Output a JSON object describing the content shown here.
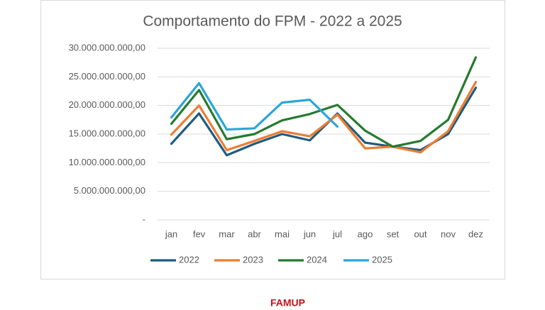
{
  "chart_data": {
    "type": "line",
    "title": "Comportamento do FPM - 2022 a 2025",
    "categories": [
      "jan",
      "fev",
      "mar",
      "abr",
      "mai",
      "jun",
      "jul",
      "ago",
      "set",
      "out",
      "nov",
      "dez"
    ],
    "series": [
      {
        "name": "2022",
        "color": "#1f5c7e",
        "values": [
          13300000000,
          18600000000,
          11300000000,
          13300000000,
          15000000000,
          13900000000,
          18600000000,
          13500000000,
          12800000000,
          12200000000,
          15000000000,
          23100000000
        ]
      },
      {
        "name": "2023",
        "color": "#ed7d31",
        "values": [
          14900000000,
          20000000000,
          12200000000,
          13800000000,
          15500000000,
          14600000000,
          18400000000,
          12500000000,
          12800000000,
          11800000000,
          15500000000,
          24100000000
        ]
      },
      {
        "name": "2024",
        "color": "#267a2f",
        "values": [
          16800000000,
          22700000000,
          14100000000,
          15000000000,
          17400000000,
          18500000000,
          20100000000,
          15600000000,
          12800000000,
          13800000000,
          17500000000,
          28400000000
        ]
      },
      {
        "name": "2025",
        "color": "#2aa6d8",
        "values": [
          17900000000,
          23900000000,
          15800000000,
          16000000000,
          20500000000,
          21000000000,
          16300000000,
          null,
          null,
          null,
          null,
          null
        ]
      }
    ],
    "ylim": [
      0,
      30000000000
    ],
    "yticks": [
      {
        "value": 0,
        "label": "-"
      },
      {
        "value": 5000000000,
        "label": "5.000.000.000,00"
      },
      {
        "value": 10000000000,
        "label": "10.000.000.000,00"
      },
      {
        "value": 15000000000,
        "label": "15.000.000.000,00"
      },
      {
        "value": 20000000000,
        "label": "20.000.000.000,00"
      },
      {
        "value": 25000000000,
        "label": "25.000.000.000,00"
      },
      {
        "value": 30000000000,
        "label": "30.000.000.000,00"
      }
    ],
    "grid": true
  },
  "footer": {
    "logo": "FAMUP"
  }
}
